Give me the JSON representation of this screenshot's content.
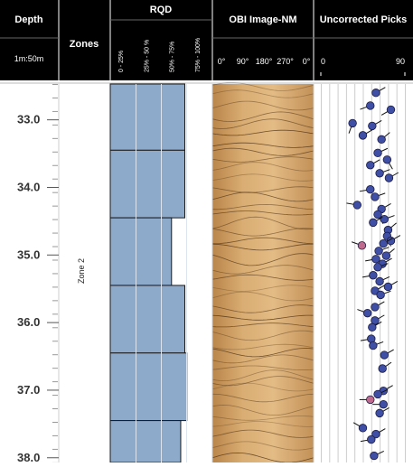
{
  "header": {
    "depth": "Depth",
    "scale": "1m:50m",
    "zones": "Zones",
    "rqd": "RQD",
    "rqd_classes": [
      "0 - 25%",
      "25% - 50 %",
      "50% - 75%",
      "75% - 100%"
    ],
    "image": "OBI Image-NM",
    "image_azimuths": [
      "0°",
      "90°",
      "180°",
      "270°",
      "0°"
    ],
    "picks": "Uncorrected Picks"
  },
  "depth": {
    "ylim": [
      32.47,
      38.07
    ],
    "yticks": [
      {
        "value": 33,
        "label": "33.0"
      },
      {
        "value": 34,
        "label": "34.0"
      },
      {
        "value": 35,
        "label": "35.0"
      },
      {
        "value": 36,
        "label": "36.0"
      },
      {
        "value": 37,
        "label": "37.0"
      },
      {
        "value": 38,
        "label": "38.0"
      }
    ]
  },
  "zones": {
    "label": "Zone 2"
  },
  "rqd": {
    "xlim": [
      0,
      100
    ],
    "top": [
      32.45,
      33.45,
      34.45,
      35.45,
      36.45,
      37.45
    ],
    "base": [
      33.45,
      34.45,
      35.45,
      36.45,
      37.45,
      38.45
    ],
    "values": [
      73,
      73,
      60,
      73,
      75,
      69
    ],
    "color": "#8eaacb"
  },
  "picks": {
    "xlim": [
      0,
      90
    ],
    "xticks": [
      0,
      90
    ],
    "groups": [
      {
        "color": "#3f4fa6",
        "depth": [
          32.6,
          32.79,
          32.85,
          33.05,
          33.09,
          33.23,
          33.29,
          33.49,
          33.59,
          33.67,
          33.79,
          33.86,
          34.03,
          34.14,
          34.26,
          34.32,
          34.4,
          34.47,
          34.52,
          34.63,
          34.72,
          34.79,
          34.83,
          34.94,
          35.01,
          35.06,
          35.13,
          35.18,
          35.3,
          35.39,
          35.47,
          35.53,
          35.59,
          35.77,
          35.86,
          35.97,
          36.07,
          36.24,
          36.34,
          36.48,
          36.68,
          37.01,
          37.06,
          37.21,
          37.34,
          37.56,
          37.65,
          37.73,
          37.97
        ],
        "dip": [
          59,
          53,
          75,
          34,
          55,
          45,
          65,
          61,
          71,
          53,
          63,
          73,
          53,
          58,
          39,
          65,
          61,
          68,
          56,
          72,
          71,
          75,
          67,
          62,
          70,
          59,
          66,
          61,
          56,
          63,
          72,
          58,
          64,
          58,
          50,
          58,
          55,
          54,
          56,
          68,
          66,
          67,
          61,
          67,
          63,
          45,
          59,
          54,
          57
        ],
        "azimuth": [
          60,
          250,
          240,
          200,
          60,
          60,
          50,
          65,
          150,
          60,
          70,
          60,
          260,
          70,
          280,
          60,
          150,
          70,
          60,
          50,
          160,
          60,
          60,
          70,
          50,
          260,
          60,
          70,
          260,
          65,
          60,
          60,
          70,
          60,
          290,
          60,
          60,
          260,
          70,
          60,
          55,
          60,
          65,
          270,
          60,
          300,
          60,
          260,
          65
        ]
      },
      {
        "color": "#c06a8e",
        "depth": [
          34.86,
          37.14
        ],
        "dip": [
          44,
          53
        ],
        "azimuth": [
          290,
          270
        ]
      }
    ]
  }
}
